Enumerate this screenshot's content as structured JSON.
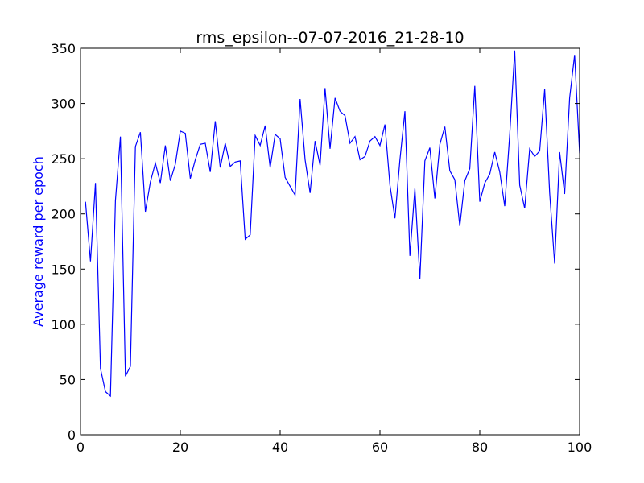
{
  "chart_data": {
    "type": "line",
    "title": "rms_epsilon--07-07-2016_21-28-10",
    "xlabel": "",
    "ylabel": "Average reward per epoch",
    "ylabel_color": "#0000ff",
    "line_color": "#0000ff",
    "xlim": [
      0,
      100
    ],
    "ylim": [
      0,
      350
    ],
    "x_ticks": [
      0,
      20,
      40,
      60,
      80,
      100
    ],
    "y_ticks": [
      0,
      50,
      100,
      150,
      200,
      250,
      300,
      350
    ],
    "grid": false,
    "legend": "none",
    "series": [
      {
        "x": [
          1,
          2,
          3,
          4,
          5,
          6,
          7,
          8,
          9,
          10,
          11,
          12,
          13,
          14,
          15,
          16,
          17,
          18,
          19,
          20,
          21,
          22,
          23,
          24,
          25,
          26,
          27,
          28,
          29,
          30,
          31,
          32,
          33,
          34,
          35,
          36,
          37,
          38,
          39,
          40,
          41,
          42,
          43,
          44,
          45,
          46,
          47,
          48,
          49,
          50,
          51,
          52,
          53,
          54,
          55,
          56,
          57,
          58,
          59,
          60,
          61,
          62,
          63,
          64,
          65,
          66,
          67,
          68,
          69,
          70,
          71,
          72,
          73,
          74,
          75,
          76,
          77,
          78,
          79,
          80,
          81,
          82,
          83,
          84,
          85,
          86,
          87,
          88,
          89,
          90,
          91,
          92,
          93,
          94,
          95,
          96,
          97,
          98,
          99,
          100
        ],
        "values": [
          211,
          157,
          228,
          60,
          39,
          35,
          212,
          270,
          53,
          62,
          261,
          274,
          202,
          229,
          246,
          228,
          262,
          230,
          245,
          275,
          273,
          232,
          249,
          263,
          264,
          238,
          284,
          242,
          264,
          243,
          247,
          248,
          177,
          181,
          271,
          262,
          280,
          242,
          272,
          268,
          233,
          225,
          217,
          304,
          249,
          219,
          266,
          244,
          314,
          259,
          305,
          293,
          289,
          264,
          270,
          249,
          252,
          266,
          270,
          262,
          281,
          226,
          196,
          249,
          293,
          162,
          223,
          141,
          248,
          260,
          214,
          263,
          279,
          239,
          231,
          189,
          230,
          241,
          316,
          211,
          228,
          236,
          256,
          238,
          207,
          272,
          348,
          226,
          205,
          259,
          252,
          257,
          313,
          219,
          155,
          256,
          218,
          305,
          344,
          255
        ]
      }
    ]
  }
}
